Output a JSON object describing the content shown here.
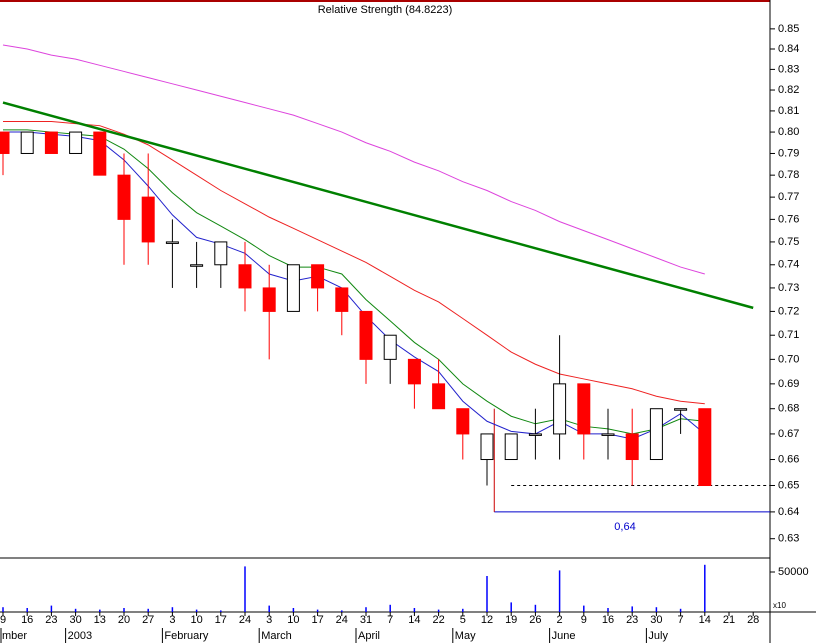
{
  "chart_data": {
    "type": "candlestick",
    "title": "Relative Strength (84.8223)",
    "log_scale": true,
    "categories": [
      "9",
      "16",
      "23",
      "30",
      "13",
      "20",
      "27",
      "3",
      "10",
      "17",
      "24",
      "3",
      "10",
      "17",
      "24",
      "31",
      "7",
      "14",
      "22",
      "5",
      "12",
      "19",
      "26",
      "2",
      "9",
      "16",
      "23",
      "30",
      "7",
      "14",
      "21",
      "28"
    ],
    "months": [
      "mber",
      null,
      null,
      "2003",
      null,
      null,
      null,
      "February",
      null,
      null,
      null,
      "March",
      null,
      null,
      null,
      "April",
      null,
      null,
      null,
      "May",
      null,
      null,
      null,
      "June",
      null,
      null,
      null,
      "July",
      null,
      null,
      null,
      null
    ],
    "candles": {
      "up_color": "#ffffff",
      "down_color": "#ff0000",
      "open": [
        0.8,
        0.79,
        0.8,
        0.79,
        0.8,
        0.78,
        0.77,
        0.75,
        0.74,
        0.74,
        0.74,
        0.73,
        0.72,
        0.74,
        0.73,
        0.72,
        0.7,
        0.7,
        0.69,
        0.68,
        0.66,
        0.66,
        0.67,
        0.67,
        0.69,
        0.67,
        0.67,
        0.66,
        0.68,
        0.68,
        null,
        null
      ],
      "high": [
        0.8,
        0.8,
        0.8,
        0.8,
        0.8,
        0.79,
        0.79,
        0.76,
        0.75,
        0.75,
        0.75,
        0.74,
        0.74,
        0.74,
        0.73,
        0.72,
        0.71,
        0.7,
        0.7,
        0.68,
        0.67,
        0.67,
        0.68,
        0.71,
        0.69,
        0.68,
        0.68,
        0.68,
        0.68,
        0.68,
        null,
        null
      ],
      "low": [
        0.78,
        0.79,
        0.79,
        0.79,
        0.78,
        0.74,
        0.74,
        0.73,
        0.73,
        0.73,
        0.72,
        0.7,
        0.72,
        0.72,
        0.71,
        0.69,
        0.69,
        0.68,
        0.68,
        0.66,
        0.65,
        0.66,
        0.66,
        0.66,
        0.66,
        0.66,
        0.65,
        0.66,
        0.67,
        0.65,
        null,
        null
      ],
      "close": [
        0.79,
        0.8,
        0.79,
        0.8,
        0.78,
        0.76,
        0.75,
        0.75,
        0.74,
        0.75,
        0.73,
        0.72,
        0.74,
        0.73,
        0.72,
        0.7,
        0.71,
        0.69,
        0.68,
        0.67,
        0.67,
        0.67,
        0.67,
        0.69,
        0.67,
        0.67,
        0.66,
        0.68,
        0.68,
        0.65,
        null,
        null
      ]
    },
    "series": [
      {
        "color": "#dd44dd",
        "values": [
          0.842,
          0.84,
          0.837,
          0.835,
          0.832,
          0.829,
          0.826,
          0.823,
          0.82,
          0.817,
          0.814,
          0.811,
          0.808,
          0.804,
          0.8,
          0.795,
          0.791,
          0.786,
          0.782,
          0.777,
          0.773,
          0.768,
          0.764,
          0.759,
          0.755,
          0.751,
          0.747,
          0.743,
          0.739,
          0.736,
          null,
          null
        ]
      },
      {
        "color": "#ee2222",
        "values": [
          0.805,
          0.805,
          0.805,
          0.804,
          0.803,
          0.799,
          0.794,
          0.787,
          0.78,
          0.773,
          0.767,
          0.761,
          0.756,
          0.751,
          0.746,
          0.741,
          0.735,
          0.729,
          0.724,
          0.717,
          0.71,
          0.703,
          0.698,
          0.694,
          0.692,
          0.69,
          0.688,
          0.685,
          0.683,
          0.682,
          null,
          null
        ]
      },
      {
        "color": "#118811",
        "values": [
          0.801,
          0.801,
          0.8,
          0.799,
          0.798,
          0.792,
          0.783,
          0.772,
          0.763,
          0.757,
          0.751,
          0.744,
          0.739,
          0.739,
          0.736,
          0.725,
          0.716,
          0.707,
          0.7,
          0.69,
          0.683,
          0.677,
          0.674,
          0.676,
          0.673,
          0.672,
          0.67,
          0.672,
          0.676,
          0.675,
          null,
          null
        ]
      },
      {
        "color": "#2222cc",
        "values": [
          0.8,
          0.8,
          0.799,
          0.798,
          0.796,
          0.787,
          0.775,
          0.762,
          0.752,
          0.749,
          0.745,
          0.736,
          0.733,
          0.735,
          0.73,
          0.718,
          0.708,
          0.701,
          0.695,
          0.683,
          0.675,
          0.671,
          0.67,
          0.675,
          0.67,
          0.67,
          0.668,
          0.672,
          0.678,
          0.67,
          null,
          null
        ]
      }
    ],
    "trendline": {
      "color": "#008000",
      "start": 0.814,
      "end": 0.7215
    },
    "support_lines": [
      {
        "value": 0.65,
        "color": "#000000",
        "dashed": true
      },
      {
        "value": 0.64,
        "color": "#0000cc",
        "label": "0,64"
      }
    ],
    "ylim": [
      0.624,
      0.862
    ],
    "yticks": [
      0.85,
      0.84,
      0.83,
      0.82,
      0.81,
      {
        "value": 0.8,
        "label": "0.80"
      },
      0.79,
      0.78,
      0.77,
      0.76,
      0.75,
      0.74,
      0.73,
      0.72,
      0.71,
      {
        "value": 0.7,
        "label": "0.70"
      },
      0.69,
      0.68,
      0.67,
      0.66,
      0.65,
      0.64,
      0.63
    ],
    "volume": {
      "color": "#0000ff",
      "ylim": [
        0,
        65000
      ],
      "yticks": [
        50000
      ],
      "unit_label": "x10",
      "values": [
        6000,
        5000,
        8000,
        4000,
        3000,
        5000,
        4000,
        6000,
        3000,
        2000,
        57000,
        8000,
        5000,
        3000,
        2000,
        6000,
        9000,
        5000,
        3000,
        4000,
        45000,
        12000,
        9000,
        52000,
        8000,
        5000,
        7000,
        6000,
        4000,
        59000,
        null,
        null
      ]
    }
  }
}
